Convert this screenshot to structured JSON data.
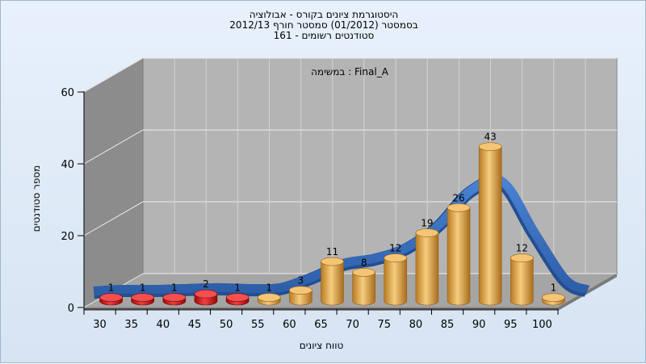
{
  "chart_data": {
    "type": "bar",
    "title_lines": [
      "היסטוגרמת ציונים בקורס - אבולוציה",
      "בסמסטר  (01/2012)  סמסטר חורף 2012/13",
      "סטודנטים רשומים - 161"
    ],
    "subtitle": "במשימה : Final_A",
    "xlabel": "טווח ציונים",
    "ylabel": "מספר סטודנטים",
    "ylim": [
      0,
      60
    ],
    "yticks": [
      0,
      20,
      40,
      60
    ],
    "categories": [
      "30",
      "35",
      "40",
      "45",
      "50",
      "55",
      "60",
      "65",
      "70",
      "75",
      "80",
      "85",
      "90",
      "95",
      "100"
    ],
    "values": [
      1,
      1,
      1,
      2,
      1,
      1,
      3,
      11,
      8,
      12,
      19,
      26,
      43,
      12,
      1
    ],
    "series": [
      {
        "values": [
          1,
          1,
          1,
          2,
          1,
          1,
          3,
          11,
          8,
          12,
          19,
          26,
          43,
          12,
          1
        ]
      }
    ],
    "fail_categories": [
      "30",
      "35",
      "40",
      "45",
      "50"
    ],
    "overlay": "smoothed-line",
    "grid": true,
    "colors": {
      "fail": "#d81414",
      "pass": "#e8a845",
      "curve": "#3a6fc0",
      "wall": "#b4b4b4",
      "side_wall": "#8c8c8c",
      "floor": "#a5a5a5"
    }
  }
}
